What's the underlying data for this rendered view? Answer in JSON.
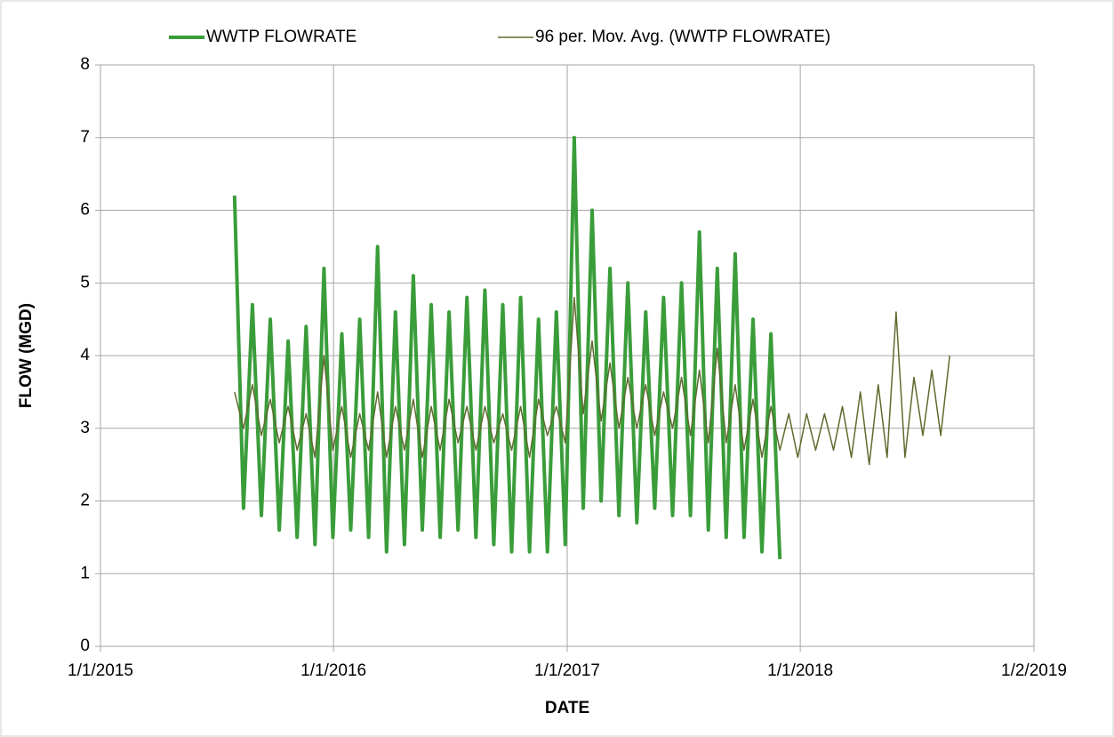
{
  "chart_data": {
    "type": "line",
    "x_label": "DATE",
    "y_label": "FLOW (MGD)",
    "x": [
      "7/30/2015",
      "8/13/2015",
      "8/27/2015",
      "9/10/2015",
      "9/24/2015",
      "10/8/2015",
      "10/22/2015",
      "11/5/2015",
      "11/19/2015",
      "12/3/2015",
      "12/17/2015",
      "12/31/2015",
      "1/14/2016",
      "1/28/2016",
      "2/11/2016",
      "2/25/2016",
      "3/10/2016",
      "3/24/2016",
      "4/7/2016",
      "4/21/2016",
      "5/5/2016",
      "5/19/2016",
      "6/2/2016",
      "6/16/2016",
      "6/30/2016",
      "7/14/2016",
      "7/28/2016",
      "8/11/2016",
      "8/25/2016",
      "9/8/2016",
      "9/22/2016",
      "10/6/2016",
      "10/20/2016",
      "11/3/2016",
      "11/17/2016",
      "12/1/2016",
      "12/15/2016",
      "12/29/2016",
      "1/12/2017",
      "1/26/2017",
      "2/9/2017",
      "2/23/2017",
      "3/9/2017",
      "3/23/2017",
      "4/6/2017",
      "4/20/2017",
      "5/4/2017",
      "5/18/2017",
      "6/1/2017",
      "6/15/2017",
      "6/29/2017",
      "7/13/2017",
      "7/27/2017",
      "8/10/2017",
      "8/24/2017",
      "9/7/2017",
      "9/21/2017",
      "10/5/2017",
      "10/19/2017",
      "11/2/2017",
      "11/16/2017",
      "11/30/2017",
      "12/14/2017",
      "12/28/2017",
      "1/11/2018",
      "1/25/2018",
      "2/8/2018",
      "2/22/2018",
      "3/8/2018",
      "3/22/2018",
      "4/5/2018",
      "4/19/2018",
      "5/3/2018",
      "5/17/2018",
      "5/31/2018",
      "6/14/2018",
      "6/28/2018",
      "7/12/2018",
      "7/26/2018",
      "8/9/2018",
      "8/23/2018"
    ],
    "series": [
      {
        "name": "WWTP FLOWRATE",
        "color": "#3a9d3a",
        "width": 4,
        "values": [
          6.2,
          1.9,
          4.7,
          1.8,
          4.5,
          1.6,
          4.2,
          1.5,
          4.4,
          1.4,
          5.2,
          1.5,
          4.3,
          1.6,
          4.5,
          1.5,
          5.5,
          1.3,
          4.6,
          1.4,
          5.1,
          1.6,
          4.7,
          1.5,
          4.6,
          1.6,
          4.8,
          1.5,
          4.9,
          1.4,
          4.7,
          1.3,
          4.8,
          1.3,
          4.5,
          1.3,
          4.6,
          1.4,
          7.0,
          1.9,
          6.0,
          2.0,
          5.2,
          1.8,
          5.0,
          1.7,
          4.6,
          1.9,
          4.8,
          1.8,
          5.0,
          1.8,
          5.7,
          1.6,
          5.2,
          1.5,
          5.4,
          1.5,
          4.5,
          1.3,
          4.3,
          1.2,
          null,
          null,
          null,
          null,
          null,
          null,
          null,
          null,
          null,
          null,
          null,
          null,
          null,
          null,
          null,
          null,
          null,
          null,
          null
        ]
      },
      {
        "name": "96 per. Mov. Avg. (WWTP FLOWRATE)",
        "color": "#5e6b2e",
        "width": 1.5,
        "values": [
          3.5,
          3.0,
          3.6,
          2.9,
          3.4,
          2.8,
          3.3,
          2.7,
          3.2,
          2.6,
          4.0,
          2.7,
          3.3,
          2.6,
          3.2,
          2.7,
          3.5,
          2.6,
          3.3,
          2.7,
          3.4,
          2.6,
          3.3,
          2.7,
          3.4,
          2.8,
          3.3,
          2.7,
          3.3,
          2.8,
          3.2,
          2.7,
          3.3,
          2.6,
          3.4,
          2.9,
          3.3,
          2.8,
          4.8,
          3.2,
          4.2,
          3.1,
          3.9,
          3.0,
          3.7,
          3.0,
          3.6,
          2.9,
          3.5,
          3.0,
          3.7,
          2.9,
          3.8,
          2.8,
          4.1,
          2.8,
          3.6,
          2.7,
          3.4,
          2.6,
          3.3,
          2.7,
          3.2,
          2.6,
          3.2,
          2.7,
          3.2,
          2.7,
          3.3,
          2.6,
          3.5,
          2.5,
          3.6,
          2.6,
          4.6,
          2.6,
          3.7,
          2.9,
          3.8,
          2.9,
          4.0
        ]
      }
    ],
    "xlim": [
      "1/1/2015",
      "1/2/2019"
    ],
    "xticks": [
      "1/1/2015",
      "1/1/2016",
      "1/1/2017",
      "1/1/2018",
      "1/2/2019"
    ],
    "ylim": [
      0,
      8
    ],
    "yticks": [
      0,
      1,
      2,
      3,
      4,
      5,
      6,
      7,
      8
    ],
    "grid": true,
    "legend": "top"
  }
}
